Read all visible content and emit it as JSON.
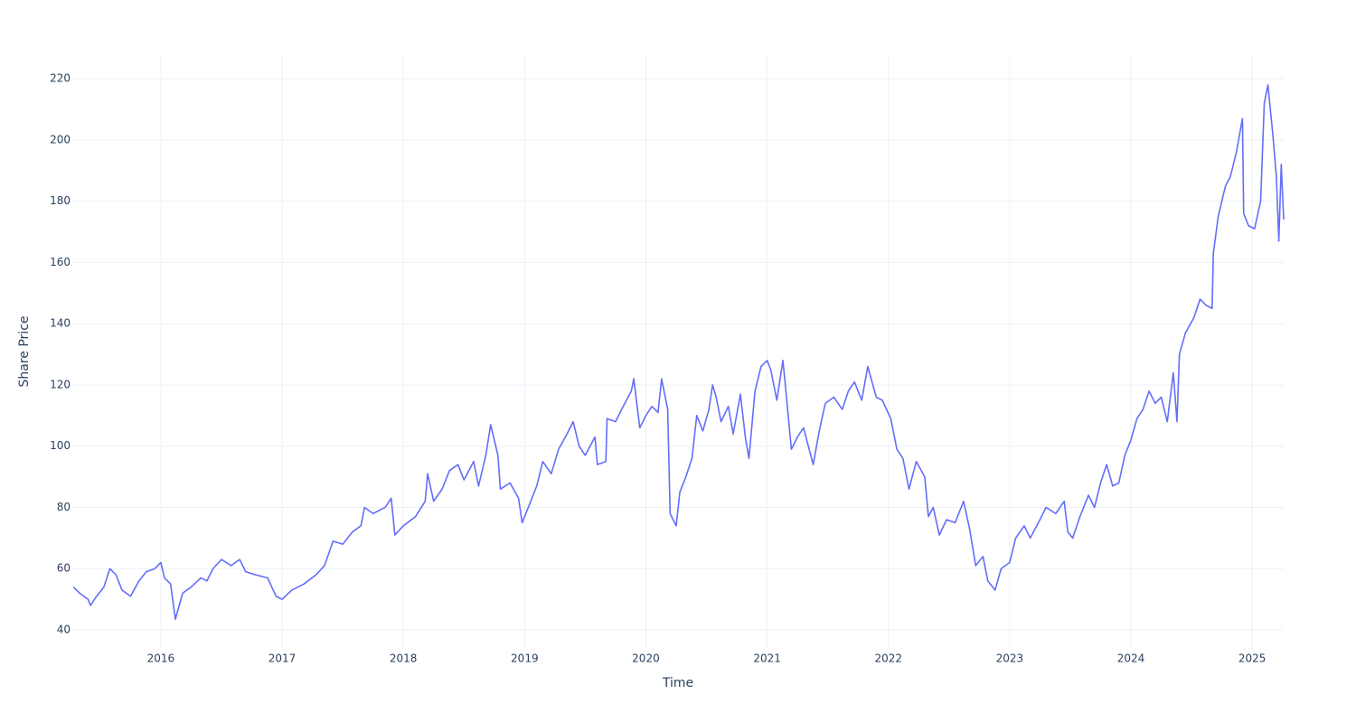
{
  "chart_data": {
    "type": "line",
    "x_label": "Time",
    "y_label": "Share Price",
    "xlim": [
      2015.27,
      2025.26
    ],
    "xticks": [
      2016,
      2017,
      2018,
      2019,
      2020,
      2021,
      2022,
      2023,
      2024,
      2025
    ],
    "ylim": [
      34.1,
      228
    ],
    "yticks": [
      40,
      60,
      80,
      100,
      120,
      140,
      160,
      180,
      200,
      220
    ],
    "grid": true,
    "series": [
      {
        "color": "#636efa",
        "x": [
          2015.28,
          2015.33,
          2015.4,
          2015.42,
          2015.47,
          2015.53,
          2015.58,
          2015.63,
          2015.68,
          2015.75,
          2015.82,
          2015.88,
          2015.95,
          2016.0,
          2016.03,
          2016.08,
          2016.12,
          2016.18,
          2016.25,
          2016.33,
          2016.38,
          2016.43,
          2016.5,
          2016.58,
          2016.65,
          2016.7,
          2016.78,
          2016.88,
          2016.95,
          2017.0,
          2017.08,
          2017.18,
          2017.28,
          2017.35,
          2017.42,
          2017.5,
          2017.58,
          2017.65,
          2017.68,
          2017.75,
          2017.85,
          2017.9,
          2017.93,
          2018.0,
          2018.1,
          2018.18,
          2018.2,
          2018.25,
          2018.32,
          2018.38,
          2018.45,
          2018.5,
          2018.58,
          2018.62,
          2018.68,
          2018.72,
          2018.78,
          2018.8,
          2018.88,
          2018.95,
          2018.98,
          2019.05,
          2019.1,
          2019.15,
          2019.22,
          2019.28,
          2019.35,
          2019.4,
          2019.45,
          2019.5,
          2019.58,
          2019.6,
          2019.67,
          2019.68,
          2019.75,
          2019.8,
          2019.88,
          2019.9,
          2019.95,
          2020.0,
          2020.05,
          2020.1,
          2020.13,
          2020.18,
          2020.2,
          2020.25,
          2020.28,
          2020.33,
          2020.38,
          2020.42,
          2020.47,
          2020.52,
          2020.55,
          2020.58,
          2020.62,
          2020.68,
          2020.72,
          2020.78,
          2020.82,
          2020.85,
          2020.9,
          2020.95,
          2021.0,
          2021.03,
          2021.08,
          2021.13,
          2021.15,
          2021.2,
          2021.25,
          2021.3,
          2021.38,
          2021.43,
          2021.48,
          2021.55,
          2021.62,
          2021.67,
          2021.72,
          2021.78,
          2021.83,
          2021.9,
          2021.95,
          2022.02,
          2022.07,
          2022.12,
          2022.17,
          2022.23,
          2022.3,
          2022.33,
          2022.37,
          2022.42,
          2022.48,
          2022.55,
          2022.62,
          2022.67,
          2022.72,
          2022.78,
          2022.82,
          2022.88,
          2022.93,
          2023.0,
          2023.05,
          2023.12,
          2023.17,
          2023.25,
          2023.3,
          2023.38,
          2023.45,
          2023.48,
          2023.52,
          2023.58,
          2023.65,
          2023.7,
          2023.75,
          2023.8,
          2023.85,
          2023.9,
          2023.95,
          2024.0,
          2024.05,
          2024.1,
          2024.15,
          2024.2,
          2024.25,
          2024.3,
          2024.35,
          2024.38,
          2024.4,
          2024.45,
          2024.52,
          2024.57,
          2024.62,
          2024.67,
          2024.68,
          2024.72,
          2024.78,
          2024.82,
          2024.87,
          2024.92,
          2024.93,
          2024.97,
          2025.02,
          2025.07,
          2025.1,
          2025.13,
          2025.17,
          2025.2,
          2025.22,
          2025.24,
          2025.26
        ],
        "values": [
          54,
          52,
          50,
          48,
          51,
          54,
          60,
          58,
          53,
          51,
          56,
          59,
          60,
          62,
          57,
          55,
          43.5,
          52,
          54,
          57,
          56,
          60,
          63,
          61,
          63,
          59,
          58,
          57,
          51,
          50,
          53,
          55,
          58,
          61,
          69,
          68,
          72,
          74,
          80,
          78,
          80,
          83,
          71,
          74,
          77,
          82,
          91,
          82,
          86,
          92,
          94,
          89,
          95,
          87,
          97,
          107,
          97,
          86,
          88,
          83,
          75,
          82,
          87,
          95,
          91,
          99,
          104,
          108,
          100,
          97,
          103,
          94,
          95,
          109,
          108,
          112,
          118,
          122,
          106,
          110,
          113,
          111,
          122,
          112,
          78,
          74,
          85,
          90,
          96,
          110,
          105,
          112,
          120,
          116,
          108,
          113,
          104,
          117,
          103,
          96,
          118,
          126,
          128,
          125,
          115,
          128,
          120,
          99,
          103,
          106,
          94,
          105,
          114,
          116,
          112,
          118,
          121,
          115,
          126,
          116,
          115,
          109,
          99,
          96,
          86,
          95,
          90,
          77,
          80,
          71,
          76,
          75,
          82,
          73,
          61,
          64,
          56,
          53,
          60,
          62,
          70,
          74,
          70,
          76,
          80,
          78,
          82,
          72,
          70,
          77,
          84,
          80,
          88,
          94,
          87,
          88,
          97,
          102,
          109,
          112,
          118,
          114,
          116,
          108,
          124,
          108,
          130,
          137,
          142,
          148,
          146,
          145,
          163,
          175,
          185,
          188,
          196,
          207,
          176,
          172,
          171,
          180,
          212,
          218,
          202,
          188,
          167,
          192,
          174
        ]
      }
    ]
  }
}
